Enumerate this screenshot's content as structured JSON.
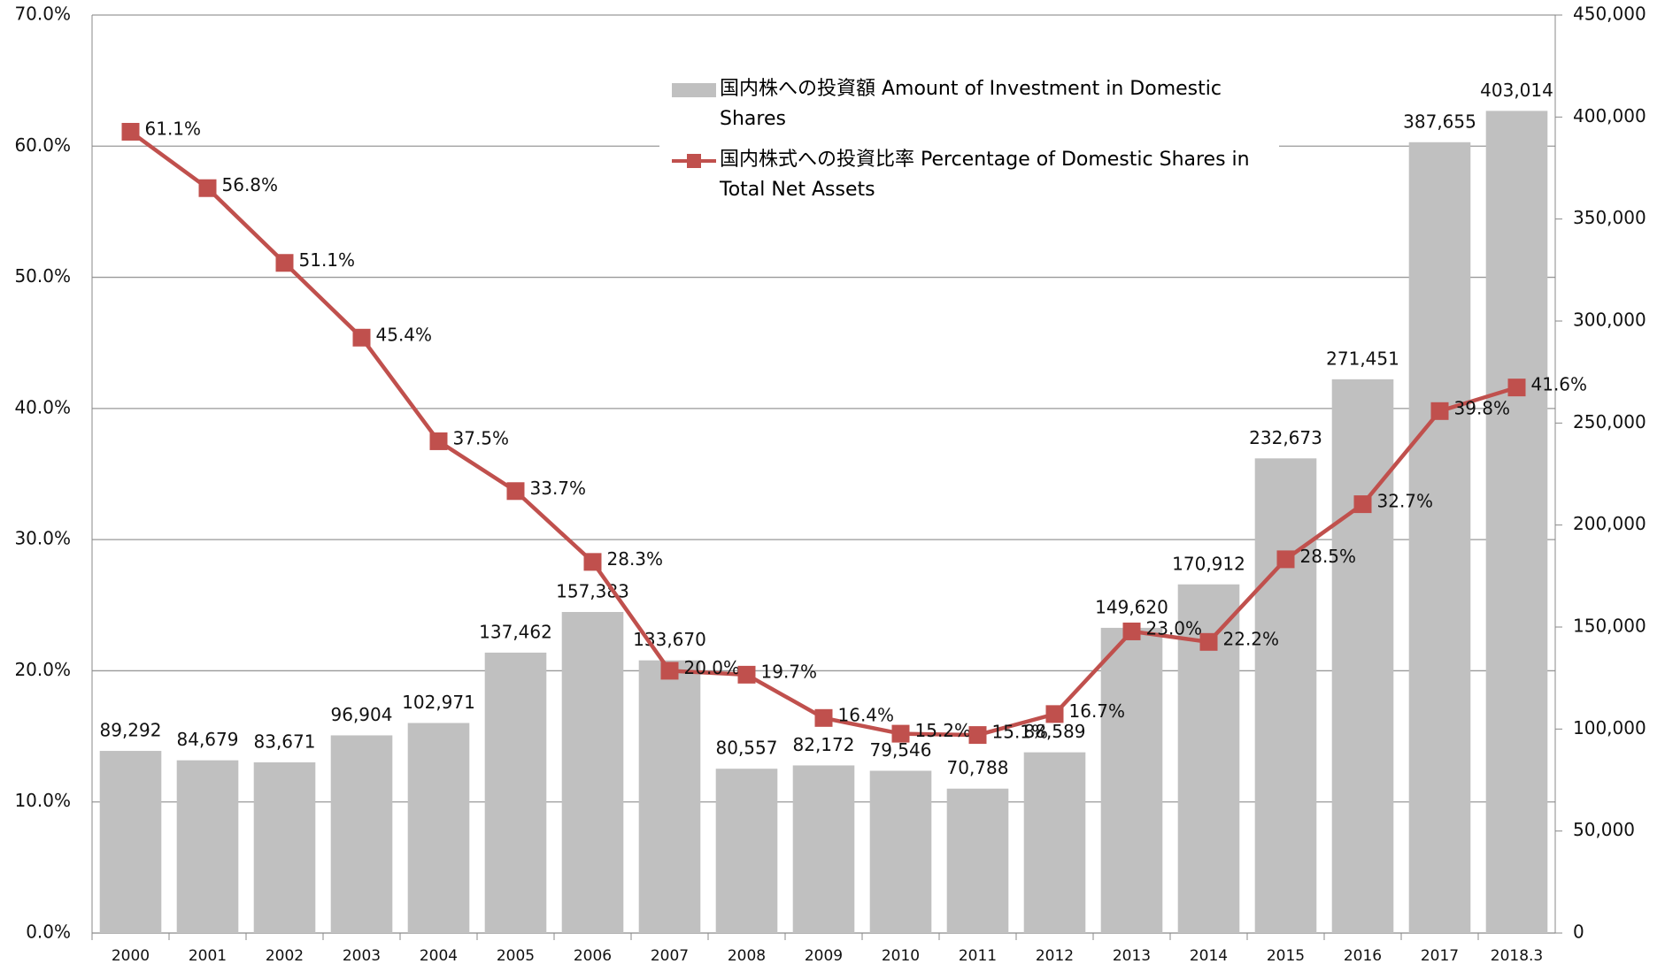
{
  "chart_data": {
    "type": "bar-line",
    "categories": [
      "2000",
      "2001",
      "2002",
      "2003",
      "2004",
      "2005",
      "2006",
      "2007",
      "2008",
      "2009",
      "2010",
      "2011",
      "2012",
      "2013",
      "2014",
      "2015",
      "2016",
      "2017",
      "2018.3"
    ],
    "series": [
      {
        "name": "国内株への投資額 Amount of Investment in Domestic Shares",
        "type": "bar",
        "axis": "y2",
        "color": "#c0c0c0",
        "values": [
          89292,
          84679,
          83671,
          96904,
          102971,
          137462,
          157383,
          133670,
          80557,
          82172,
          79546,
          70788,
          88589,
          149620,
          170912,
          232673,
          271451,
          387655,
          403014
        ],
        "value_labels": [
          "89,292",
          "84,679",
          "83,671",
          "96,904",
          "102,971",
          "137,462",
          "157,383",
          "133,670",
          "80,557",
          "82,172",
          "79,546",
          "70,788",
          "88,589",
          "149,620",
          "170,912",
          "232,673",
          "271,451",
          "387,655",
          "403,014"
        ]
      },
      {
        "name": "国内株式への投資比率 Percentage of Domestic Shares in Total Net Assets",
        "type": "line",
        "axis": "y",
        "color": "#c0504d",
        "values": [
          61.1,
          56.8,
          51.1,
          45.4,
          37.5,
          33.7,
          28.3,
          20.0,
          19.7,
          16.4,
          15.2,
          15.1,
          16.7,
          23.0,
          22.2,
          28.5,
          32.7,
          39.8,
          41.6
        ],
        "value_labels": [
          "61.1%",
          "56.8%",
          "51.1%",
          "45.4%",
          "37.5%",
          "33.7%",
          "28.3%",
          "20.0%",
          "19.7%",
          "16.4%",
          "15.2%",
          "15.1%",
          "16.7%",
          "23.0%",
          "22.2%",
          "28.5%",
          "32.7%",
          "39.8%",
          "41.6%"
        ]
      }
    ],
    "ylim": [
      0,
      70
    ],
    "yticks": [
      {
        "value": 0,
        "label": "0.0%"
      },
      {
        "value": 10,
        "label": "10.0%"
      },
      {
        "value": 20,
        "label": "20.0%"
      },
      {
        "value": 30,
        "label": "30.0%"
      },
      {
        "value": 40,
        "label": "40.0%"
      },
      {
        "value": 50,
        "label": "50.0%"
      },
      {
        "value": 60,
        "label": "60.0%"
      },
      {
        "value": 70,
        "label": "70.0%"
      }
    ],
    "y2lim": [
      0,
      450000
    ],
    "y2ticks": [
      0,
      {
        "value": 50000,
        "label": "50,000"
      },
      {
        "value": 100000,
        "label": "100,000"
      },
      {
        "value": 150000,
        "label": "150,000"
      },
      {
        "value": 200000,
        "label": "200,000"
      },
      {
        "value": 250000,
        "label": "250,000"
      },
      {
        "value": 300000,
        "label": "300,000"
      },
      {
        "value": 350000,
        "label": "350,000"
      },
      {
        "value": 400000,
        "label": "400,000"
      },
      {
        "value": 450000,
        "label": "450,000"
      }
    ],
    "grid": true
  }
}
